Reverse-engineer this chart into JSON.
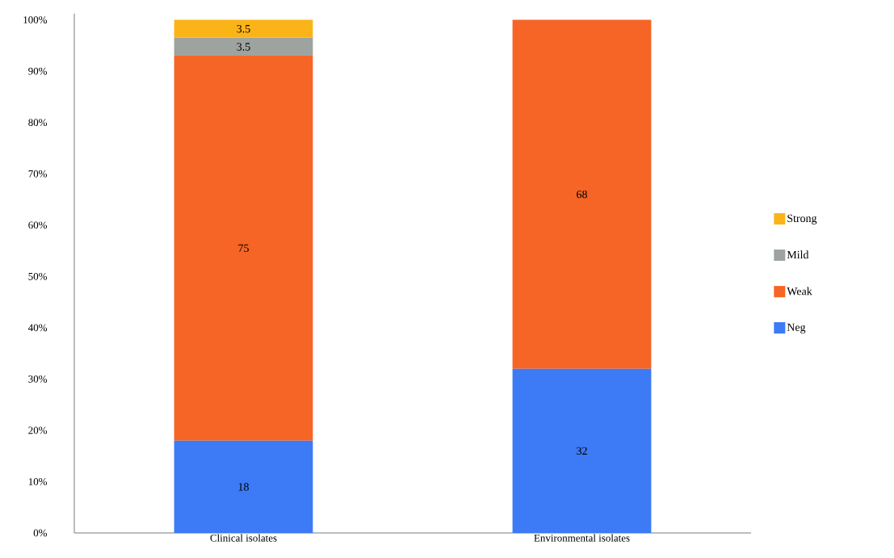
{
  "chart_data": {
    "type": "bar",
    "stacked": true,
    "categories": [
      "Clinical isolates",
      "Environmental isolates"
    ],
    "series": [
      {
        "name": "Neg",
        "color": "#3d7af5",
        "values": [
          18,
          32
        ],
        "value_labels": [
          "18",
          "32"
        ]
      },
      {
        "name": "Weak",
        "color": "#f66526",
        "values": [
          75,
          68
        ],
        "value_labels": [
          "75",
          "68"
        ]
      },
      {
        "name": "Mild",
        "color": "#9ea3a0",
        "values": [
          3.5,
          null
        ],
        "value_labels": [
          "3.5",
          null
        ]
      },
      {
        "name": "Strong",
        "color": "#fbb418",
        "values": [
          3.5,
          null
        ],
        "value_labels": [
          "3.5",
          null
        ]
      }
    ],
    "ylim": [
      0,
      100
    ],
    "yticks": [
      {
        "value": 0,
        "label": "0%"
      },
      {
        "value": 10,
        "label": "10%"
      },
      {
        "value": 20,
        "label": "20%"
      },
      {
        "value": 30,
        "label": "30%"
      },
      {
        "value": 40,
        "label": "40%"
      },
      {
        "value": 50,
        "label": "50%"
      },
      {
        "value": 60,
        "label": "60%"
      },
      {
        "value": 70,
        "label": "70%"
      },
      {
        "value": 80,
        "label": "80%"
      },
      {
        "value": 90,
        "label": "90%"
      },
      {
        "value": 100,
        "label": "100%"
      }
    ],
    "grid": false,
    "legend": "right"
  }
}
